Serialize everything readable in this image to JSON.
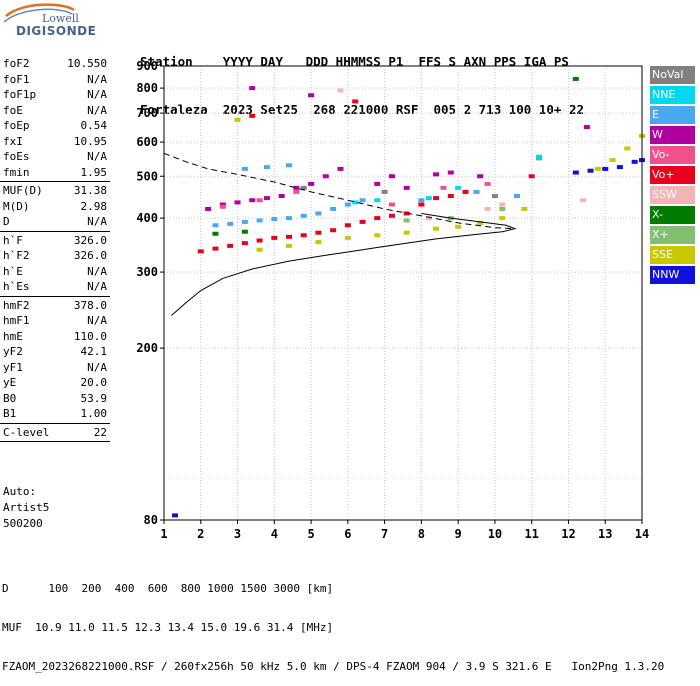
{
  "logo": {
    "line1": "Lowell",
    "line2": "DIGISONDE"
  },
  "header": {
    "labels": "Station    YYYY DAY   DDD HHMMSS P1  FFS S AXN PPS IGA PS",
    "values": "Fortaleza  2023 Set25  268 221000 RSF  005 2 713 100 10+ 22"
  },
  "params": [
    {
      "name": "foF2",
      "value": "10.550"
    },
    {
      "name": "foF1",
      "value": "N/A"
    },
    {
      "name": "foF1p",
      "value": "N/A"
    },
    {
      "name": "foE",
      "value": "N/A"
    },
    {
      "name": "foEp",
      "value": "0.54"
    },
    {
      "name": "fxI",
      "value": "10.95"
    },
    {
      "name": "foEs",
      "value": "N/A"
    },
    {
      "name": "fmin",
      "value": "1.95"
    },
    {
      "sep": true
    },
    {
      "name": "MUF(D)",
      "value": "31.38"
    },
    {
      "name": "M(D)",
      "value": "2.98"
    },
    {
      "name": "D",
      "value": "N/A"
    },
    {
      "sep": true
    },
    {
      "name": "h`F",
      "value": "326.0"
    },
    {
      "name": "h`F2",
      "value": "326.0"
    },
    {
      "name": "h`E",
      "value": "N/A"
    },
    {
      "name": "h`Es",
      "value": "N/A"
    },
    {
      "sep": true
    },
    {
      "name": "hmF2",
      "value": "378.0"
    },
    {
      "name": "hmF1",
      "value": "N/A"
    },
    {
      "name": "hmE",
      "value": "110.0"
    },
    {
      "name": "yF2",
      "value": "42.1"
    },
    {
      "name": "yF1",
      "value": "N/A"
    },
    {
      "name": "yE",
      "value": "20.0"
    },
    {
      "name": "B0",
      "value": "53.9"
    },
    {
      "name": "B1",
      "value": "1.00"
    },
    {
      "sep": true
    },
    {
      "name": "C-level",
      "value": "22"
    },
    {
      "sep": true
    }
  ],
  "auto": {
    "line1": "Auto:",
    "line2": "Artist5",
    "line3": "500200"
  },
  "legend": [
    {
      "label": "NoVal",
      "color": "#808080"
    },
    {
      "label": "NNE",
      "color": "#00d8f0"
    },
    {
      "label": "E",
      "color": "#4aa8f0"
    },
    {
      "label": "W",
      "color": "#b000a0"
    },
    {
      "label": "Vo-",
      "color": "#f0508c"
    },
    {
      "label": "Vo+",
      "color": "#e8001c"
    },
    {
      "label": "SSW",
      "color": "#f4b4b4"
    },
    {
      "label": "X-",
      "color": "#007a00"
    },
    {
      "label": "X+",
      "color": "#80c070"
    },
    {
      "label": "SSE",
      "color": "#c8c800"
    },
    {
      "label": "NNW",
      "color": "#1010e0"
    }
  ],
  "bottom": {
    "line1": "D      100  200  400  600  800 1000 1500 3000 [km]",
    "line2": "MUF  10.9 11.0 11.5 12.3 13.4 15.0 19.6 31.4 [MHz]",
    "line3": "FZAOM_2023268221000.RSF / 260fx256h 50 kHz 5.0 km / DPS-4 FZAOM 904 / 3.9 S 321.6 E   Ion2Png 1.3.20"
  },
  "chart_data": {
    "type": "scatter",
    "title": "",
    "xlabel": "",
    "ylabel": "",
    "xlim": [
      1,
      14
    ],
    "ylim": [
      80,
      900
    ],
    "x_ticks": [
      1,
      2,
      3,
      4,
      5,
      6,
      7,
      8,
      9,
      10,
      11,
      12,
      13,
      14
    ],
    "y_ticks": [
      80,
      200,
      300,
      400,
      500,
      600,
      700,
      800,
      900
    ],
    "y_scale": "log",
    "grid": true,
    "legend_position": "right",
    "series": [
      {
        "name": "W",
        "color": "#b000a0",
        "points": [
          [
            2.2,
            420
          ],
          [
            2.6,
            430
          ],
          [
            3.0,
            435
          ],
          [
            3.4,
            440
          ],
          [
            3.8,
            445
          ],
          [
            4.2,
            450
          ],
          [
            4.6,
            470
          ],
          [
            5.0,
            480
          ],
          [
            5.4,
            500
          ],
          [
            5.8,
            520
          ],
          [
            6.8,
            480
          ],
          [
            7.2,
            500
          ],
          [
            7.6,
            470
          ],
          [
            8.4,
            505
          ],
          [
            8.8,
            510
          ],
          [
            9.6,
            500
          ],
          [
            3.4,
            800
          ],
          [
            5.0,
            770
          ],
          [
            12.5,
            650
          ]
        ]
      },
      {
        "name": "E",
        "color": "#4aa8f0",
        "points": [
          [
            2.4,
            385
          ],
          [
            2.8,
            388
          ],
          [
            3.2,
            392
          ],
          [
            3.6,
            395
          ],
          [
            4.0,
            398
          ],
          [
            4.4,
            400
          ],
          [
            4.8,
            405
          ],
          [
            5.2,
            410
          ],
          [
            5.6,
            420
          ],
          [
            6.0,
            430
          ],
          [
            6.4,
            440
          ],
          [
            3.2,
            520
          ],
          [
            3.8,
            525
          ],
          [
            4.4,
            530
          ],
          [
            8.0,
            440
          ],
          [
            9.5,
            460
          ],
          [
            10.6,
            450
          ],
          [
            11.2,
            550
          ]
        ]
      },
      {
        "name": "Vo+",
        "color": "#e8001c",
        "points": [
          [
            2.0,
            335
          ],
          [
            2.4,
            340
          ],
          [
            2.8,
            345
          ],
          [
            3.2,
            350
          ],
          [
            3.6,
            355
          ],
          [
            4.0,
            360
          ],
          [
            4.4,
            362
          ],
          [
            4.8,
            365
          ],
          [
            5.2,
            370
          ],
          [
            5.6,
            375
          ],
          [
            6.0,
            385
          ],
          [
            6.4,
            392
          ],
          [
            6.8,
            400
          ],
          [
            7.2,
            405
          ],
          [
            7.6,
            410
          ],
          [
            8.0,
            430
          ],
          [
            8.4,
            445
          ],
          [
            8.8,
            450
          ],
          [
            9.2,
            460
          ],
          [
            3.4,
            690
          ],
          [
            6.2,
            745
          ],
          [
            11.0,
            500
          ]
        ]
      },
      {
        "name": "SSE",
        "color": "#c8c800",
        "points": [
          [
            3.6,
            338
          ],
          [
            4.4,
            345
          ],
          [
            5.2,
            352
          ],
          [
            6.0,
            360
          ],
          [
            6.8,
            365
          ],
          [
            7.6,
            370
          ],
          [
            8.4,
            378
          ],
          [
            9.0,
            382
          ],
          [
            9.6,
            390
          ],
          [
            10.2,
            400
          ],
          [
            10.8,
            420
          ],
          [
            12.8,
            520
          ],
          [
            13.2,
            545
          ],
          [
            13.6,
            580
          ],
          [
            14.0,
            620
          ],
          [
            3.0,
            675
          ]
        ]
      },
      {
        "name": "NNW",
        "color": "#1010e0",
        "points": [
          [
            12.2,
            510
          ],
          [
            12.6,
            515
          ],
          [
            13.0,
            520
          ],
          [
            13.4,
            525
          ],
          [
            13.8,
            540
          ],
          [
            14.0,
            545
          ],
          [
            1.3,
            82
          ]
        ]
      },
      {
        "name": "NNE",
        "color": "#00d8f0",
        "points": [
          [
            6.2,
            435
          ],
          [
            6.8,
            440
          ],
          [
            8.2,
            445
          ],
          [
            9.0,
            470
          ],
          [
            11.2,
            555
          ]
        ]
      },
      {
        "name": "Vo-",
        "color": "#f0508c",
        "points": [
          [
            2.6,
            425
          ],
          [
            3.6,
            440
          ],
          [
            4.6,
            460
          ],
          [
            7.2,
            430
          ],
          [
            8.6,
            470
          ],
          [
            9.8,
            480
          ]
        ]
      },
      {
        "name": "SSW",
        "color": "#f4b4b4",
        "points": [
          [
            8.2,
            400
          ],
          [
            9.8,
            420
          ],
          [
            10.2,
            430
          ],
          [
            12.4,
            440
          ],
          [
            5.8,
            790
          ]
        ]
      },
      {
        "name": "X-",
        "color": "#007a00",
        "points": [
          [
            2.4,
            368
          ],
          [
            3.2,
            372
          ],
          [
            12.2,
            840
          ]
        ]
      },
      {
        "name": "X+",
        "color": "#80c070",
        "points": [
          [
            7.6,
            395
          ],
          [
            8.8,
            400
          ],
          [
            10.2,
            420
          ]
        ]
      },
      {
        "name": "NoVal",
        "color": "#808080",
        "points": [
          [
            4.8,
            470
          ],
          [
            7.0,
            460
          ],
          [
            10.0,
            450
          ]
        ]
      }
    ],
    "profile_solid": [
      [
        1.2,
        238
      ],
      [
        1.6,
        255
      ],
      [
        2.0,
        272
      ],
      [
        2.6,
        290
      ],
      [
        3.4,
        305
      ],
      [
        4.4,
        318
      ],
      [
        5.4,
        328
      ],
      [
        6.4,
        338
      ],
      [
        7.4,
        348
      ],
      [
        8.4,
        358
      ],
      [
        9.4,
        366
      ],
      [
        10.2,
        372
      ],
      [
        10.55,
        378
      ],
      [
        10.3,
        385
      ],
      [
        9.6,
        392
      ],
      [
        8.8,
        400
      ],
      [
        8.0,
        410
      ]
    ],
    "profile_dashed": [
      [
        1.0,
        565
      ],
      [
        1.6,
        540
      ],
      [
        2.2,
        520
      ],
      [
        3.0,
        505
      ],
      [
        4.0,
        485
      ],
      [
        5.0,
        460
      ],
      [
        6.0,
        440
      ],
      [
        7.0,
        420
      ],
      [
        8.0,
        405
      ],
      [
        9.0,
        390
      ],
      [
        10.0,
        380
      ],
      [
        10.55,
        378
      ]
    ]
  }
}
